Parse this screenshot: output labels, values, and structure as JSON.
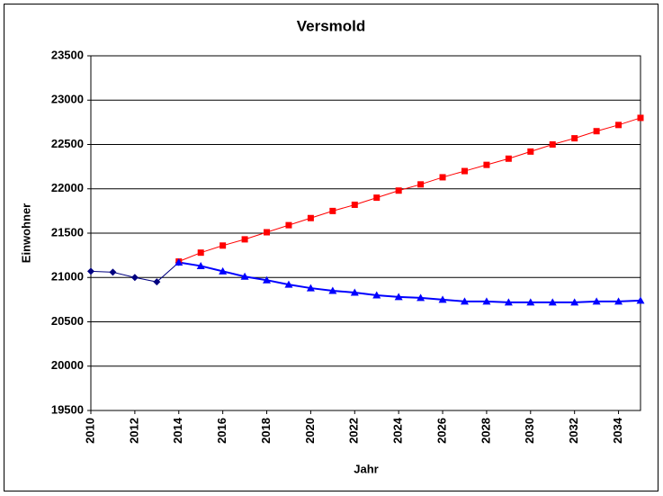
{
  "chart_data": {
    "type": "line",
    "title": "Versmold",
    "xlabel": "Jahr",
    "ylabel": "Einwohner",
    "x": [
      2010,
      2011,
      2012,
      2013,
      2014,
      2015,
      2016,
      2017,
      2018,
      2019,
      2020,
      2021,
      2022,
      2023,
      2024,
      2025,
      2026,
      2027,
      2028,
      2029,
      2030,
      2031,
      2032,
      2033,
      2034,
      2035
    ],
    "series": [
      {
        "color": "#000080",
        "marker": "diamond",
        "values": [
          21070,
          21060,
          21000,
          20950,
          21170,
          null,
          null,
          null,
          null,
          null,
          null,
          null,
          null,
          null,
          null,
          null,
          null,
          null,
          null,
          null,
          null,
          null,
          null,
          null,
          null,
          null
        ]
      },
      {
        "color": "#ff0000",
        "marker": "square",
        "values": [
          null,
          null,
          null,
          null,
          21180,
          21280,
          21360,
          21430,
          21510,
          21590,
          21670,
          21750,
          21820,
          21900,
          21980,
          22050,
          22130,
          22200,
          22270,
          22340,
          22420,
          22500,
          22570,
          22650,
          22720,
          22800
        ]
      },
      {
        "color": "#0000ff",
        "marker": "triangle",
        "values": [
          null,
          null,
          null,
          null,
          21170,
          21130,
          21070,
          21010,
          20970,
          20920,
          20880,
          20850,
          20830,
          20800,
          20780,
          20770,
          20750,
          20730,
          20730,
          20720,
          20720,
          20720,
          20720,
          20730,
          20730,
          20740
        ]
      }
    ],
    "xlim": [
      2010,
      2035
    ],
    "xticks": [
      2010,
      2012,
      2014,
      2016,
      2018,
      2020,
      2022,
      2024,
      2026,
      2028,
      2030,
      2032,
      2034
    ],
    "ylim": [
      19500,
      23500
    ],
    "yticks": [
      19500,
      20000,
      20500,
      21000,
      21500,
      22000,
      22500,
      23000,
      23500
    ],
    "grid": true
  }
}
